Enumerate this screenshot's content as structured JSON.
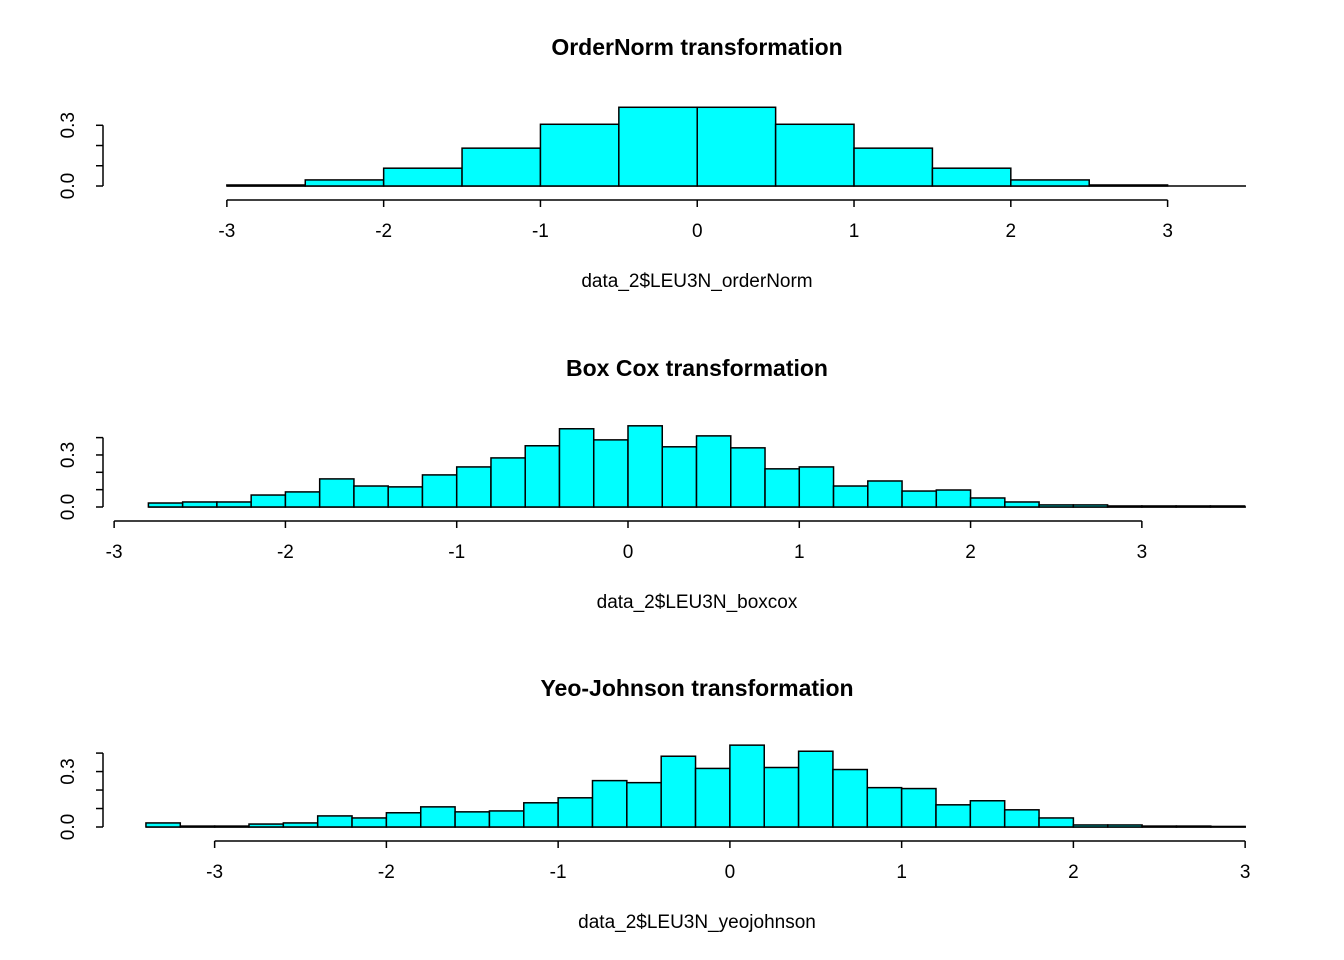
{
  "chart_data": [
    {
      "type": "histogram",
      "title": "OrderNorm transformation",
      "xlabel": "data_2$LEU3N_orderNorm",
      "color": "#00ffff",
      "bins": [
        -3,
        -2.5,
        -2,
        -1.5,
        -1,
        -0.5,
        0,
        0.5,
        1,
        1.5,
        2,
        2.5,
        3
      ],
      "values": [
        0.005,
        0.03,
        0.088,
        0.187,
        0.305,
        0.389,
        0.389,
        0.305,
        0.187,
        0.088,
        0.03,
        0.005
      ],
      "xlim": [
        -3.79,
        3.5
      ],
      "ylim": [
        0,
        0.42
      ],
      "xticks": [
        -3,
        -2,
        -1,
        0,
        1,
        2,
        3
      ],
      "yticks": [
        {
          "value": 0,
          "label": "0.0"
        },
        {
          "value": 0.1,
          "label": null
        },
        {
          "value": 0.2,
          "label": null
        },
        {
          "value": 0.3,
          "label": "0.3"
        }
      ]
    },
    {
      "type": "histogram",
      "title": "Box Cox transformation",
      "xlabel": "data_2$LEU3N_boxcox",
      "color": "#00ffff",
      "bins": [
        -2.8,
        -2.6,
        -2.4,
        -2.2,
        -2,
        -1.8,
        -1.6,
        -1.4,
        -1.2,
        -1,
        -0.8,
        -0.6,
        -0.4,
        -0.2,
        0,
        0.2,
        0.4,
        0.6,
        0.8,
        1,
        1.2,
        1.4,
        1.6,
        1.8,
        2,
        2.2,
        2.4,
        2.6,
        2.8,
        3,
        3.2,
        3.4,
        3.6
      ],
      "values": [
        0.023,
        0.029,
        0.029,
        0.069,
        0.087,
        0.162,
        0.121,
        0.116,
        0.185,
        0.231,
        0.283,
        0.353,
        0.451,
        0.387,
        0.468,
        0.347,
        0.41,
        0.341,
        0.22,
        0.231,
        0.121,
        0.15,
        0.092,
        0.098,
        0.052,
        0.029,
        0.012,
        0.012,
        0.006,
        0.006,
        0.006,
        0.006
      ],
      "xlim": [
        -3.065,
        3.608
      ],
      "ylim": [
        0,
        0.49
      ],
      "xticks": [
        -3,
        -2,
        -1,
        0,
        1,
        2,
        3
      ],
      "yticks": [
        {
          "value": 0,
          "label": "0.0"
        },
        {
          "value": 0.1,
          "label": null
        },
        {
          "value": 0.2,
          "label": null
        },
        {
          "value": 0.3,
          "label": "0.3"
        },
        {
          "value": 0.4,
          "label": null
        }
      ]
    },
    {
      "type": "histogram",
      "title": "Yeo-Johnson transformation",
      "xlabel": "data_2$LEU3N_yeojohnson",
      "color": "#00ffff",
      "bins": [
        -3.4,
        -3.2,
        -3,
        -2.8,
        -2.6,
        -2.4,
        -2.2,
        -2,
        -1.8,
        -1.6,
        -1.4,
        -1.2,
        -1,
        -0.8,
        -0.6,
        -0.4,
        -0.2,
        0,
        0.2,
        0.4,
        0.6,
        0.8,
        1,
        1.2,
        1.4,
        1.6,
        1.8,
        2,
        2.2,
        2.4,
        2.6,
        2.8,
        3
      ],
      "values": [
        0.022,
        0.005,
        0.005,
        0.016,
        0.022,
        0.06,
        0.049,
        0.077,
        0.109,
        0.082,
        0.087,
        0.131,
        0.158,
        0.251,
        0.24,
        0.383,
        0.317,
        0.443,
        0.322,
        0.41,
        0.311,
        0.213,
        0.208,
        0.12,
        0.142,
        0.093,
        0.049,
        0.011,
        0.011,
        0.005,
        0.005,
        0.003
      ],
      "xlim": [
        -3.65,
        3.005
      ],
      "ylim": [
        0,
        0.46
      ],
      "xticks": [
        -3,
        -2,
        -1,
        0,
        1,
        2,
        3
      ],
      "yticks": [
        {
          "value": 0,
          "label": "0.0"
        },
        {
          "value": 0.1,
          "label": null
        },
        {
          "value": 0.2,
          "label": null
        },
        {
          "value": 0.3,
          "label": "0.3"
        },
        {
          "value": 0.4,
          "label": null
        }
      ]
    }
  ]
}
